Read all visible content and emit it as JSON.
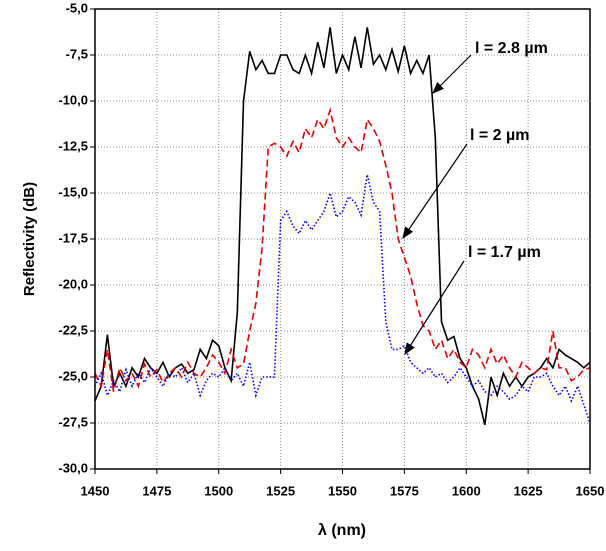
{
  "chart_data": {
    "type": "line",
    "xlabel": "λ  (nm)",
    "ylabel": "Reflectivity   (dB)",
    "x": [
      1450,
      1452.5,
      1455,
      1457.5,
      1460,
      1462.5,
      1465,
      1467.5,
      1470,
      1472.5,
      1475,
      1477.5,
      1480,
      1482.5,
      1485,
      1487.5,
      1490,
      1492.5,
      1495,
      1497.5,
      1500,
      1502.5,
      1505,
      1507.5,
      1510,
      1512.5,
      1515,
      1517.5,
      1520,
      1522.5,
      1525,
      1527.5,
      1530,
      1532.5,
      1535,
      1537.5,
      1540,
      1542.5,
      1545,
      1547.5,
      1550,
      1552.5,
      1555,
      1557.5,
      1560,
      1562.5,
      1565,
      1567.5,
      1570,
      1572.5,
      1575,
      1577.5,
      1580,
      1582.5,
      1585,
      1587.5,
      1590,
      1592.5,
      1595,
      1597.5,
      1600,
      1602.5,
      1605,
      1607.5,
      1610,
      1612.5,
      1615,
      1617.5,
      1620,
      1622.5,
      1625,
      1627.5,
      1630,
      1632.5,
      1635,
      1637.5,
      1640,
      1642.5,
      1645,
      1647.5,
      1650
    ],
    "series": [
      {
        "name": "l = 2.8 µm",
        "color": "#000000",
        "dash": "none",
        "values": [
          -26.3,
          -25.5,
          -22.7,
          -25.5,
          -24.8,
          -25.5,
          -24.5,
          -25,
          -24,
          -24.5,
          -24.8,
          -24.2,
          -25,
          -24.5,
          -24.3,
          -24.8,
          -24.6,
          -23.5,
          -24,
          -23,
          -23.3,
          -24.5,
          -25.2,
          -21.5,
          -10,
          -7.3,
          -8.3,
          -7.8,
          -8.5,
          -8.5,
          -7.5,
          -7.5,
          -8.3,
          -8.5,
          -7.5,
          -8.5,
          -6.8,
          -8.2,
          -6,
          -8.5,
          -7.5,
          -8.3,
          -6.5,
          -8.2,
          -6,
          -8,
          -7.5,
          -8.3,
          -7.2,
          -8.4,
          -7,
          -8.5,
          -7.8,
          -8.5,
          -7.5,
          -12,
          -22,
          -23,
          -22.8,
          -24,
          -24.5,
          -25.5,
          -26.2,
          -27.6,
          -25,
          -26,
          -24.8,
          -25.5,
          -25,
          -25.5,
          -25,
          -24.8,
          -24.5,
          -24,
          -24.5,
          -23.5,
          -23.8,
          -24,
          -24.2,
          -24.5,
          -24.2
        ]
      },
      {
        "name": "l = 2 µm",
        "color": "#e00000",
        "dash": "7,4",
        "values": [
          -24.8,
          -25.5,
          -23.5,
          -25.8,
          -24.5,
          -25.2,
          -24.8,
          -25.5,
          -24.3,
          -25,
          -24.6,
          -25.3,
          -24.8,
          -24.5,
          -25,
          -24.2,
          -24.8,
          -25,
          -24.5,
          -23.8,
          -24.2,
          -24.8,
          -23.5,
          -24.5,
          -24.3,
          -22.5,
          -21,
          -18,
          -12.5,
          -12.3,
          -12.5,
          -13,
          -12.2,
          -12.8,
          -11.5,
          -12,
          -11,
          -11.5,
          -10.5,
          -12,
          -12.5,
          -12,
          -12.5,
          -12.8,
          -11,
          -11.5,
          -12.2,
          -13.5,
          -15,
          -17.5,
          -18.5,
          -19.5,
          -21,
          -22.2,
          -22.5,
          -23.5,
          -23,
          -24,
          -23.5,
          -24.2,
          -24.5,
          -23.5,
          -23.8,
          -24.5,
          -23.5,
          -24.3,
          -23.8,
          -24.5,
          -25,
          -24.2,
          -24.5,
          -24.8,
          -24.5,
          -24.6,
          -22.5,
          -24.5,
          -24.5,
          -25.2,
          -25,
          -24.6,
          -24.5
        ]
      },
      {
        "name": "l = 1.7 µm",
        "color": "#0000ff",
        "dash": "1.5,2",
        "values": [
          -25.5,
          -24.8,
          -26,
          -25.2,
          -25.8,
          -24.6,
          -25.5,
          -24.8,
          -25.3,
          -24.5,
          -25,
          -25.5,
          -24.8,
          -25,
          -24.5,
          -25.3,
          -24.8,
          -26,
          -25.2,
          -24.8,
          -25,
          -24.5,
          -25.2,
          -24.8,
          -25.5,
          -24.2,
          -26,
          -25,
          -25,
          -25,
          -16.5,
          -16,
          -16.8,
          -17.2,
          -16.5,
          -17,
          -16.5,
          -16,
          -15,
          -16.3,
          -16,
          -15.2,
          -15.5,
          -16.2,
          -14,
          -15.5,
          -16,
          -22,
          -23.5,
          -23.5,
          -23.3,
          -24.2,
          -24.5,
          -24.8,
          -24.5,
          -25,
          -24.8,
          -25.3,
          -25,
          -24.5,
          -25,
          -25.5,
          -25.2,
          -25.8,
          -26,
          -25.5,
          -25.8,
          -26.2,
          -26,
          -25.5,
          -25.8,
          -25,
          -25,
          -24.8,
          -25.5,
          -26,
          -25.5,
          -26.3,
          -25.5,
          -26.5,
          -27.5
        ]
      }
    ],
    "xlim": [
      1450,
      1650
    ],
    "xticks": [
      1450,
      1475,
      1500,
      1525,
      1550,
      1575,
      1600,
      1625,
      1650
    ],
    "ylim": [
      -30,
      -5
    ],
    "yticks": [
      {
        "value": -30,
        "label": "-30,0"
      },
      {
        "value": -27.5,
        "label": "-27,5"
      },
      {
        "value": -25,
        "label": "-25,0"
      },
      {
        "value": -22.5,
        "label": "-22,5"
      },
      {
        "value": -20,
        "label": "-20,0"
      },
      {
        "value": -17.5,
        "label": "-17,5"
      },
      {
        "value": -15,
        "label": "-15,0"
      },
      {
        "value": -12.5,
        "label": "-12,5"
      },
      {
        "value": -10,
        "label": "-10,0"
      },
      {
        "value": -7.5,
        "label": "-7,5"
      },
      {
        "value": -5,
        "label": "-5,0"
      }
    ],
    "grid": true
  }
}
